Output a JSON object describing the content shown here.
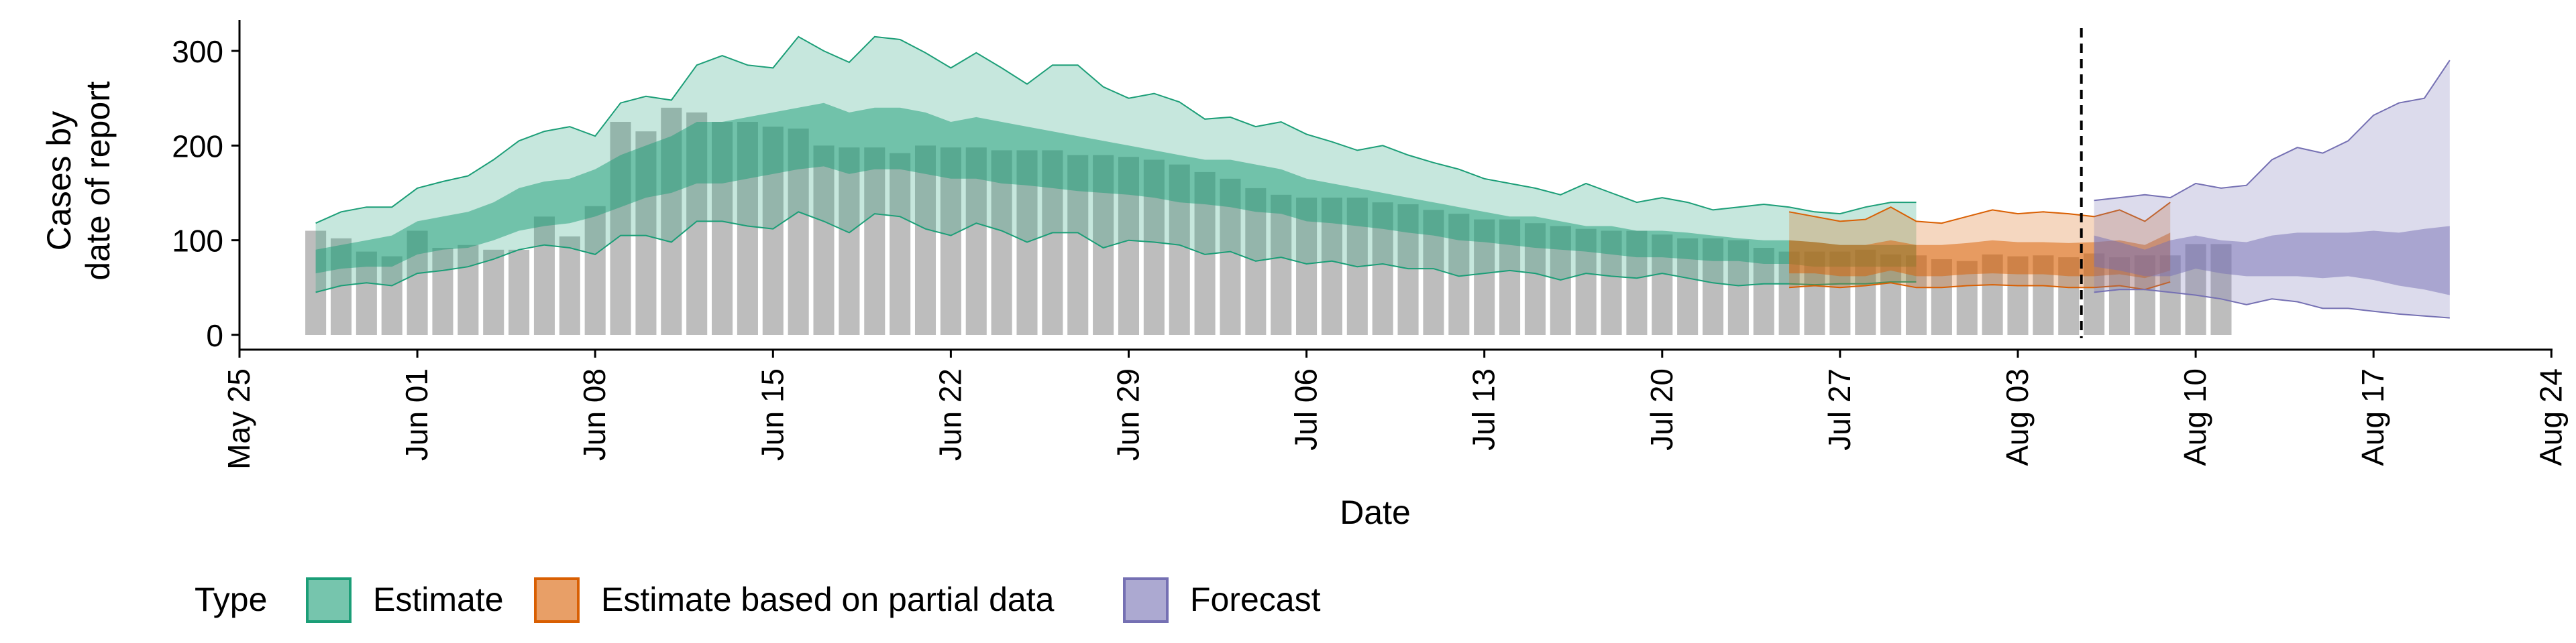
{
  "chart_data": {
    "type": "area",
    "title": "",
    "xlabel": "Date",
    "ylabel_lines": [
      "Cases by",
      "date of report"
    ],
    "x_range": [
      "2020-05-25",
      "2020-08-24"
    ],
    "ylim": [
      0,
      330
    ],
    "x_ticks": [
      {
        "date": "2020-05-25",
        "label": "May 25"
      },
      {
        "date": "2020-06-01",
        "label": "Jun 01"
      },
      {
        "date": "2020-06-08",
        "label": "Jun 08"
      },
      {
        "date": "2020-06-15",
        "label": "Jun 15"
      },
      {
        "date": "2020-06-22",
        "label": "Jun 22"
      },
      {
        "date": "2020-06-29",
        "label": "Jun 29"
      },
      {
        "date": "2020-07-06",
        "label": "Jul 06"
      },
      {
        "date": "2020-07-13",
        "label": "Jul 13"
      },
      {
        "date": "2020-07-20",
        "label": "Jul 20"
      },
      {
        "date": "2020-07-27",
        "label": "Jul 27"
      },
      {
        "date": "2020-08-03",
        "label": "Aug 03"
      },
      {
        "date": "2020-08-10",
        "label": "Aug 10"
      },
      {
        "date": "2020-08-17",
        "label": "Aug 17"
      },
      {
        "date": "2020-08-24",
        "label": "Aug 24"
      }
    ],
    "y_ticks": [
      0,
      100,
      200,
      300
    ],
    "grid": false,
    "legend": {
      "position": "bottom-left",
      "title": "Type"
    },
    "vline_date": "2020-08-05",
    "reported_cases": {
      "start_date": "2020-05-28",
      "color": "#bdbdbd",
      "values": [
        110,
        102,
        88,
        83,
        110,
        92,
        95,
        90,
        90,
        125,
        104,
        136,
        225,
        215,
        240,
        235,
        225,
        225,
        220,
        218,
        200,
        198,
        198,
        192,
        200,
        198,
        198,
        195,
        195,
        195,
        190,
        190,
        188,
        185,
        180,
        172,
        165,
        155,
        148,
        145,
        145,
        145,
        140,
        138,
        132,
        128,
        122,
        122,
        118,
        115,
        112,
        110,
        110,
        106,
        102,
        102,
        100,
        92,
        88,
        88,
        88,
        90,
        85,
        84,
        80,
        78,
        85,
        83,
        84,
        82,
        86,
        82,
        84,
        84,
        96,
        96
      ]
    },
    "series": [
      {
        "name": "Estimate",
        "color": "#1b9e77",
        "start_date": "2020-05-28",
        "upper90": [
          118,
          130,
          135,
          135,
          155,
          162,
          168,
          185,
          205,
          215,
          220,
          210,
          245,
          252,
          248,
          285,
          295,
          285,
          282,
          315,
          300,
          288,
          315,
          312,
          298,
          282,
          298,
          282,
          265,
          285,
          285,
          262,
          250,
          255,
          246,
          228,
          230,
          220,
          225,
          212,
          204,
          195,
          200,
          190,
          182,
          175,
          165,
          160,
          155,
          148,
          160,
          150,
          140,
          145,
          140,
          132,
          135,
          138,
          135,
          130,
          128,
          135,
          140,
          140
        ],
        "upper50": [
          90,
          95,
          100,
          105,
          120,
          125,
          130,
          140,
          155,
          162,
          165,
          175,
          190,
          200,
          210,
          225,
          225,
          230,
          235,
          240,
          245,
          235,
          240,
          240,
          235,
          225,
          230,
          225,
          220,
          215,
          210,
          205,
          200,
          195,
          190,
          185,
          185,
          180,
          175,
          165,
          160,
          155,
          150,
          145,
          140,
          135,
          130,
          125,
          125,
          120,
          115,
          115,
          110,
          110,
          108,
          105,
          102,
          100,
          100,
          98,
          95,
          95,
          95,
          95
        ],
        "lower50": [
          65,
          70,
          72,
          72,
          85,
          90,
          92,
          100,
          110,
          115,
          118,
          125,
          135,
          145,
          150,
          160,
          160,
          165,
          170,
          175,
          178,
          170,
          175,
          175,
          170,
          165,
          165,
          160,
          158,
          155,
          152,
          150,
          148,
          145,
          140,
          138,
          135,
          130,
          128,
          120,
          118,
          115,
          112,
          108,
          105,
          100,
          98,
          95,
          92,
          90,
          88,
          85,
          82,
          82,
          80,
          78,
          78,
          75,
          75,
          72,
          72,
          72,
          72,
          72
        ],
        "lower90": [
          45,
          52,
          55,
          52,
          65,
          68,
          72,
          80,
          90,
          95,
          92,
          85,
          105,
          105,
          98,
          120,
          120,
          115,
          112,
          130,
          120,
          108,
          128,
          125,
          112,
          105,
          118,
          110,
          98,
          108,
          108,
          92,
          100,
          98,
          95,
          85,
          88,
          78,
          82,
          75,
          78,
          72,
          75,
          70,
          70,
          62,
          65,
          68,
          65,
          58,
          65,
          62,
          60,
          65,
          60,
          55,
          52,
          54,
          54,
          53,
          54,
          54,
          56,
          56
        ]
      },
      {
        "name": "Estimate based on partial data",
        "color": "#d95f02",
        "start_date": "2020-07-25",
        "upper90": [
          130,
          125,
          120,
          122,
          135,
          120,
          118,
          125,
          132,
          128,
          130,
          128,
          125,
          132,
          120,
          140
        ],
        "upper50": [
          100,
          98,
          95,
          95,
          100,
          95,
          95,
          97,
          100,
          98,
          98,
          97,
          98,
          100,
          95,
          108
        ],
        "lower50": [
          65,
          65,
          62,
          62,
          68,
          62,
          62,
          64,
          65,
          64,
          64,
          62,
          62,
          64,
          60,
          68
        ],
        "lower90": [
          50,
          52,
          50,
          52,
          55,
          50,
          50,
          52,
          53,
          52,
          52,
          50,
          50,
          52,
          48,
          56
        ]
      },
      {
        "name": "Forecast",
        "color": "#7570b3",
        "start_date": "2020-08-06",
        "upper90": [
          142,
          145,
          148,
          145,
          160,
          155,
          158,
          185,
          198,
          192,
          205,
          232,
          245,
          250,
          290
        ],
        "upper50": [
          105,
          98,
          90,
          100,
          105,
          100,
          98,
          105,
          108,
          108,
          108,
          110,
          108,
          112,
          115
        ],
        "lower50": [
          72,
          68,
          62,
          62,
          70,
          65,
          62,
          62,
          62,
          60,
          62,
          58,
          52,
          48,
          42
        ],
        "lower90": [
          45,
          48,
          48,
          45,
          42,
          38,
          32,
          38,
          35,
          28,
          28,
          25,
          22,
          20,
          18
        ]
      }
    ]
  }
}
